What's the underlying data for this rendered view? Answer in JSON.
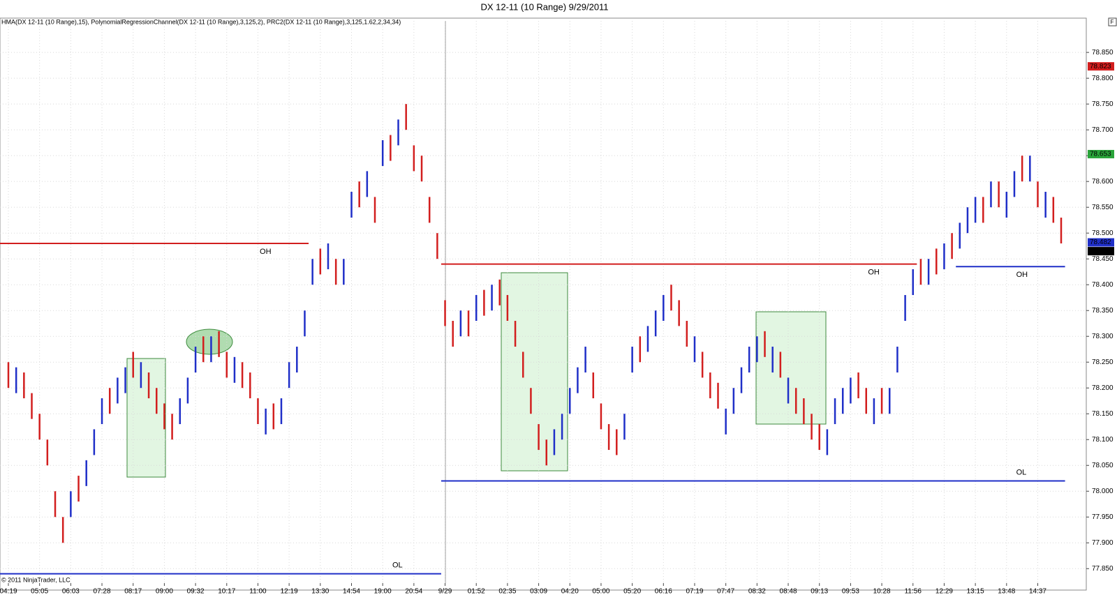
{
  "chart_data": {
    "type": "range-bar",
    "title": "DX 12-11 (10 Range)  9/29/2011",
    "indicators": "HMA(DX 12-11 (10 Range),15), PolynomialRegressionChannel(DX 12-11 (10 Range),3,125,2), PRC2(DX 12-11 (10 Range),3,125,1.62,2,34,34)",
    "copyright": "© 2011 NinjaTrader, LLC",
    "corner_button": "F",
    "up_color": "#1f2fc8",
    "down_color": "#d21e1e",
    "grid": true,
    "categories": [
      "04:19",
      null,
      null,
      null,
      "05:05",
      null,
      null,
      null,
      "06:03",
      null,
      null,
      null,
      "07:28",
      null,
      null,
      null,
      "08:17",
      null,
      null,
      null,
      "09:00",
      null,
      null,
      null,
      "09:32",
      null,
      null,
      null,
      "10:17",
      null,
      null,
      null,
      "11:00",
      null,
      null,
      null,
      "12:19",
      null,
      null,
      null,
      "13:30",
      null,
      null,
      null,
      "14:54",
      null,
      null,
      null,
      "19:00",
      null,
      null,
      null,
      "20:54",
      null,
      null,
      null,
      "9/29",
      null,
      null,
      null,
      "01:52",
      null,
      null,
      null,
      "02:35",
      null,
      null,
      null,
      "03:09",
      null,
      null,
      null,
      "04:20",
      null,
      null,
      null,
      "05:00",
      null,
      null,
      null,
      "05:20",
      null,
      null,
      null,
      "06:16",
      null,
      null,
      null,
      "07:19",
      null,
      null,
      null,
      "07:47",
      null,
      null,
      null,
      "08:32",
      null,
      null,
      null,
      "08:48",
      null,
      null,
      null,
      "09:13",
      null,
      null,
      null,
      "09:53",
      null,
      null,
      null,
      "10:28",
      null,
      null,
      null,
      "11:56",
      null,
      null,
      null,
      "12:29",
      null,
      null,
      null,
      "13:15",
      null,
      null,
      null,
      "13:48",
      null,
      null,
      null,
      "14:37",
      null,
      null,
      null
    ],
    "open": [
      78.25,
      78.19,
      78.23,
      78.19,
      78.15,
      78.1,
      78.0,
      77.95,
      77.95,
      78.03,
      78.01,
      78.07,
      78.13,
      78.2,
      78.17,
      78.19,
      78.27,
      78.2,
      78.23,
      78.2,
      78.17,
      78.15,
      78.13,
      78.17,
      78.23,
      78.3,
      78.25,
      78.31,
      78.27,
      78.21,
      78.25,
      78.23,
      78.18,
      78.11,
      78.17,
      78.13,
      78.2,
      78.23,
      78.3,
      78.4,
      78.47,
      78.43,
      78.45,
      78.4,
      78.53,
      78.6,
      78.57,
      78.57,
      78.63,
      78.69,
      78.67,
      78.75,
      78.67,
      78.65,
      78.57,
      78.5,
      78.37,
      78.33,
      78.3,
      78.35,
      78.33,
      78.39,
      78.35,
      78.41,
      78.38,
      78.33,
      78.27,
      78.2,
      78.13,
      78.1,
      78.07,
      78.1,
      78.15,
      78.19,
      78.23,
      78.23,
      78.17,
      78.13,
      78.12,
      78.1,
      78.23,
      78.3,
      78.27,
      78.3,
      78.33,
      78.4,
      78.37,
      78.33,
      78.25,
      78.27,
      78.23,
      78.21,
      78.11,
      78.15,
      78.19,
      78.23,
      78.25,
      78.31,
      78.23,
      78.27,
      78.17,
      78.2,
      78.18,
      78.15,
      78.13,
      78.07,
      78.13,
      78.15,
      78.17,
      78.23,
      78.2,
      78.13,
      78.2,
      78.15,
      78.23,
      78.33,
      78.38,
      78.45,
      78.4,
      78.47,
      78.43,
      78.5,
      78.47,
      78.5,
      78.52,
      78.57,
      78.55,
      78.6,
      78.53,
      78.57,
      78.65,
      78.6,
      78.6,
      78.53,
      78.57,
      78.53
    ],
    "close": [
      78.2,
      78.24,
      78.18,
      78.14,
      78.1,
      78.05,
      77.95,
      77.9,
      78.0,
      77.98,
      78.06,
      78.12,
      78.18,
      78.15,
      78.22,
      78.24,
      78.22,
      78.25,
      78.18,
      78.15,
      78.12,
      78.1,
      78.18,
      78.22,
      78.28,
      78.25,
      78.3,
      78.26,
      78.22,
      78.26,
      78.2,
      78.18,
      78.13,
      78.16,
      78.12,
      78.18,
      78.25,
      78.28,
      78.35,
      78.45,
      78.42,
      78.48,
      78.4,
      78.45,
      78.58,
      78.55,
      78.62,
      78.52,
      78.68,
      78.64,
      78.72,
      78.7,
      78.62,
      78.6,
      78.52,
      78.45,
      78.32,
      78.28,
      78.35,
      78.3,
      78.38,
      78.34,
      78.4,
      78.36,
      78.33,
      78.28,
      78.22,
      78.15,
      78.08,
      78.05,
      78.12,
      78.15,
      78.2,
      78.24,
      78.28,
      78.18,
      78.12,
      78.08,
      78.07,
      78.15,
      78.28,
      78.25,
      78.32,
      78.35,
      78.38,
      78.35,
      78.32,
      78.28,
      78.3,
      78.22,
      78.18,
      78.16,
      78.16,
      78.2,
      78.24,
      78.28,
      78.3,
      78.26,
      78.28,
      78.22,
      78.22,
      78.15,
      78.13,
      78.1,
      78.08,
      78.12,
      78.18,
      78.2,
      78.22,
      78.18,
      78.15,
      78.18,
      78.15,
      78.2,
      78.28,
      78.38,
      78.43,
      78.4,
      78.45,
      78.42,
      78.48,
      78.45,
      78.52,
      78.55,
      78.57,
      78.52,
      78.6,
      78.55,
      78.58,
      78.62,
      78.6,
      78.65,
      78.55,
      78.58,
      78.52,
      78.48
    ],
    "levels": [
      {
        "label": "OH",
        "value": 78.48,
        "start": 0,
        "end": 38,
        "color": "#d21e1e"
      },
      {
        "label": "OL",
        "value": 77.84,
        "start": 0,
        "end": 55,
        "color": "#1f2fc8"
      },
      {
        "label": "OH",
        "value": 78.44,
        "start": 56,
        "end": 116,
        "color": "#d21e1e"
      },
      {
        "label": "OL",
        "value": 78.02,
        "start": 56,
        "end": 135,
        "color": "#1f2fc8"
      },
      {
        "label": "OH",
        "value": 78.435,
        "start": 122,
        "end": 135,
        "color": "#1f2fc8"
      }
    ],
    "price_markers": [
      {
        "value": 78.823,
        "label": "78.823",
        "color": "#d21e1e"
      },
      {
        "value": 78.653,
        "label": "78.653",
        "color": "#2aa43a"
      },
      {
        "value": 78.482,
        "label": "78.482",
        "color": "#1f2fc8"
      },
      {
        "value": 78.465,
        "label": "78.465",
        "color": "#000000"
      }
    ],
    "ylim": [
      77.822,
      78.911
    ],
    "yticks": [
      {
        "value": 77.85,
        "label": "77.850"
      },
      {
        "value": 77.9,
        "label": "77.900"
      },
      {
        "value": 77.95,
        "label": "77.950"
      },
      {
        "value": 78,
        "label": "78.000"
      },
      {
        "value": 78.05,
        "label": "78.050"
      },
      {
        "value": 78.1,
        "label": "78.100"
      },
      {
        "value": 78.15,
        "label": "78.150"
      },
      {
        "value": 78.2,
        "label": "78.200"
      },
      {
        "value": 78.25,
        "label": "78.250"
      },
      {
        "value": 78.3,
        "label": "78.300"
      },
      {
        "value": 78.35,
        "label": "78.350"
      },
      {
        "value": 78.4,
        "label": "78.400"
      },
      {
        "value": 78.45,
        "label": "78.450"
      },
      {
        "value": 78.5,
        "label": "78.500"
      },
      {
        "value": 78.55,
        "label": "78.550"
      },
      {
        "value": 78.6,
        "label": "78.600"
      },
      {
        "value": 78.65,
        "label": "78.650"
      },
      {
        "value": 78.7,
        "label": "78.700"
      },
      {
        "value": 78.75,
        "label": "78.750"
      },
      {
        "value": 78.8,
        "label": "78.800"
      },
      {
        "value": 78.85,
        "label": "78.850"
      }
    ]
  }
}
